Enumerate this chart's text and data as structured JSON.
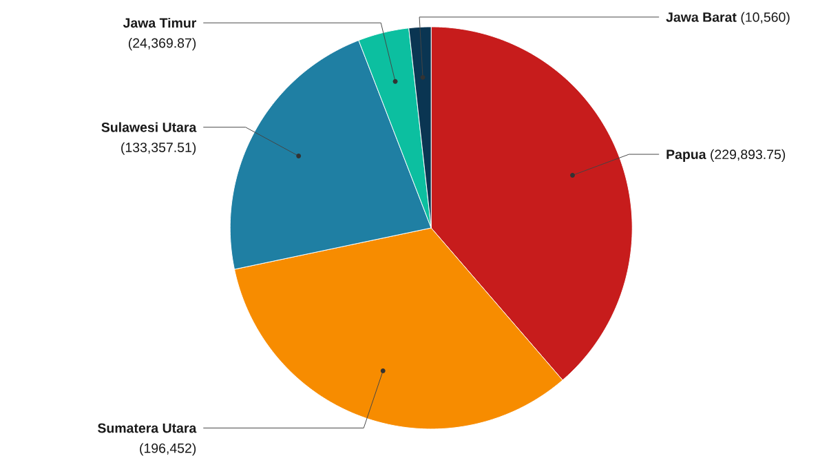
{
  "chart_data": {
    "type": "pie",
    "categories": [
      "Papua",
      "Sumatera Utara",
      "Sulawesi Utara",
      "Jawa Timur",
      "Jawa Barat"
    ],
    "values": [
      229893.75,
      196452,
      133357.51,
      24369.87,
      10560
    ],
    "value_labels": [
      "(229,893.75)",
      "(196,452)",
      "(133,357.51)",
      "(24,369.87)",
      "(10,560)"
    ],
    "colors": [
      "#c71c1c",
      "#f78c00",
      "#1f7fa3",
      "#0cbfa0",
      "#0a3552"
    ]
  }
}
